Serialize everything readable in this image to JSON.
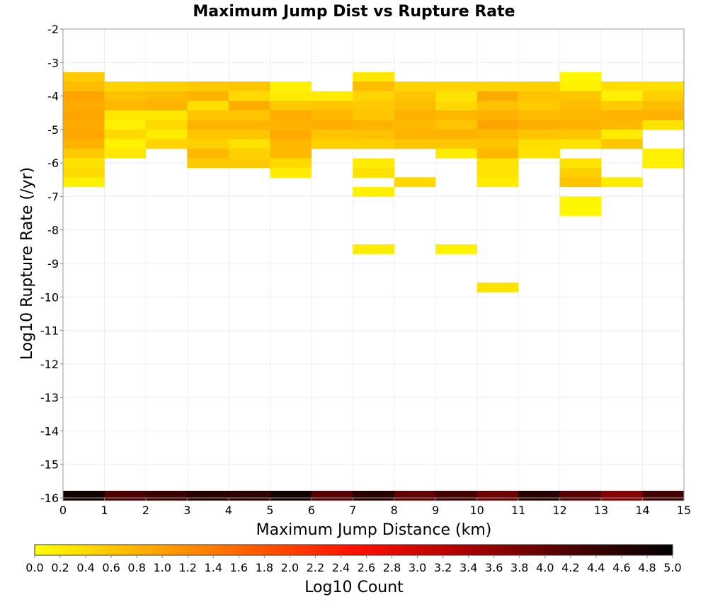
{
  "chart_data": {
    "type": "heatmap",
    "title": "Maximum Jump Dist vs Rupture Rate",
    "xlabel": "Maximum Jump Distance (km)",
    "ylabel": "Log10 Rupture Rate (/yr)",
    "xlim": [
      0,
      15
    ],
    "ylim": [
      -16,
      -2
    ],
    "x_ticks": [
      "0",
      "1",
      "2",
      "3",
      "4",
      "5",
      "6",
      "7",
      "8",
      "9",
      "10",
      "11",
      "12",
      "13",
      "14",
      "15"
    ],
    "y_ticks": [
      "-2",
      "-3",
      "-4",
      "-5",
      "-6",
      "-7",
      "-8",
      "-9",
      "-10",
      "-11",
      "-12",
      "-13",
      "-14",
      "-15",
      "-16"
    ],
    "grid": true,
    "x_bin_width": 1,
    "y_bin_height": 0.2857,
    "cells": [
      {
        "x": 0,
        "y": -3.43,
        "v": 0.55
      },
      {
        "x": 0,
        "y": -3.71,
        "v": 0.7
      },
      {
        "x": 0,
        "y": -4.0,
        "v": 0.95
      },
      {
        "x": 0,
        "y": -4.29,
        "v": 0.9
      },
      {
        "x": 0,
        "y": -4.57,
        "v": 0.95
      },
      {
        "x": 0,
        "y": -4.86,
        "v": 0.9
      },
      {
        "x": 0,
        "y": -5.14,
        "v": 0.95
      },
      {
        "x": 0,
        "y": -5.43,
        "v": 0.8
      },
      {
        "x": 0,
        "y": -5.71,
        "v": 0.55
      },
      {
        "x": 0,
        "y": -6.0,
        "v": 0.3
      },
      {
        "x": 0,
        "y": -6.29,
        "v": 0.4
      },
      {
        "x": 0,
        "y": -6.57,
        "v": 0.15
      },
      {
        "x": 1,
        "y": -3.71,
        "v": 0.45
      },
      {
        "x": 1,
        "y": -4.0,
        "v": 0.65
      },
      {
        "x": 1,
        "y": -4.29,
        "v": 0.75
      },
      {
        "x": 1,
        "y": -4.57,
        "v": 0.25
      },
      {
        "x": 1,
        "y": -4.86,
        "v": 0.15
      },
      {
        "x": 1,
        "y": -5.14,
        "v": 0.4
      },
      {
        "x": 1,
        "y": -5.43,
        "v": 0.15
      },
      {
        "x": 1,
        "y": -5.71,
        "v": 0.25
      },
      {
        "x": 2,
        "y": -3.71,
        "v": 0.5
      },
      {
        "x": 2,
        "y": -4.0,
        "v": 0.7
      },
      {
        "x": 2,
        "y": -4.29,
        "v": 0.8
      },
      {
        "x": 2,
        "y": -4.57,
        "v": 0.25
      },
      {
        "x": 2,
        "y": -4.86,
        "v": 0.4
      },
      {
        "x": 2,
        "y": -5.14,
        "v": 0.2
      },
      {
        "x": 2,
        "y": -5.43,
        "v": 0.45
      },
      {
        "x": 3,
        "y": -3.71,
        "v": 0.55
      },
      {
        "x": 3,
        "y": -4.0,
        "v": 0.8
      },
      {
        "x": 3,
        "y": -4.29,
        "v": 0.35
      },
      {
        "x": 3,
        "y": -4.57,
        "v": 0.6
      },
      {
        "x": 3,
        "y": -4.86,
        "v": 0.8
      },
      {
        "x": 3,
        "y": -5.14,
        "v": 0.6
      },
      {
        "x": 3,
        "y": -5.43,
        "v": 0.5
      },
      {
        "x": 3,
        "y": -5.71,
        "v": 0.75
      },
      {
        "x": 3,
        "y": -6.0,
        "v": 0.55
      },
      {
        "x": 4,
        "y": -3.71,
        "v": 0.6
      },
      {
        "x": 4,
        "y": -4.0,
        "v": 0.4
      },
      {
        "x": 4,
        "y": -4.29,
        "v": 0.85
      },
      {
        "x": 4,
        "y": -4.57,
        "v": 0.6
      },
      {
        "x": 4,
        "y": -4.86,
        "v": 0.8
      },
      {
        "x": 4,
        "y": -5.14,
        "v": 0.6
      },
      {
        "x": 4,
        "y": -5.43,
        "v": 0.3
      },
      {
        "x": 4,
        "y": -5.71,
        "v": 0.5
      },
      {
        "x": 4,
        "y": -6.0,
        "v": 0.55
      },
      {
        "x": 5,
        "y": -3.71,
        "v": 0.15
      },
      {
        "x": 5,
        "y": -4.0,
        "v": 0.2
      },
      {
        "x": 5,
        "y": -4.29,
        "v": 0.55
      },
      {
        "x": 5,
        "y": -4.57,
        "v": 0.85
      },
      {
        "x": 5,
        "y": -4.86,
        "v": 0.8
      },
      {
        "x": 5,
        "y": -5.14,
        "v": 0.9
      },
      {
        "x": 5,
        "y": -5.43,
        "v": 0.75
      },
      {
        "x": 5,
        "y": -5.71,
        "v": 0.75
      },
      {
        "x": 5,
        "y": -6.0,
        "v": 0.4
      },
      {
        "x": 5,
        "y": -6.29,
        "v": 0.2
      },
      {
        "x": 6,
        "y": -4.0,
        "v": 0.2
      },
      {
        "x": 6,
        "y": -4.29,
        "v": 0.6
      },
      {
        "x": 6,
        "y": -4.57,
        "v": 0.75
      },
      {
        "x": 6,
        "y": -4.86,
        "v": 0.85
      },
      {
        "x": 6,
        "y": -5.14,
        "v": 0.6
      },
      {
        "x": 6,
        "y": -5.43,
        "v": 0.5
      },
      {
        "x": 7,
        "y": -3.43,
        "v": 0.25
      },
      {
        "x": 7,
        "y": -3.71,
        "v": 0.7
      },
      {
        "x": 7,
        "y": -4.0,
        "v": 0.45
      },
      {
        "x": 7,
        "y": -4.29,
        "v": 0.55
      },
      {
        "x": 7,
        "y": -4.57,
        "v": 0.6
      },
      {
        "x": 7,
        "y": -4.86,
        "v": 0.8
      },
      {
        "x": 7,
        "y": -5.14,
        "v": 0.65
      },
      {
        "x": 7,
        "y": -5.43,
        "v": 0.5
      },
      {
        "x": 7,
        "y": -6.0,
        "v": 0.2
      },
      {
        "x": 7,
        "y": -6.29,
        "v": 0.3
      },
      {
        "x": 7,
        "y": -6.86,
        "v": 0.15
      },
      {
        "x": 7,
        "y": -8.57,
        "v": 0.2
      },
      {
        "x": 8,
        "y": -3.71,
        "v": 0.45
      },
      {
        "x": 8,
        "y": -4.0,
        "v": 0.6
      },
      {
        "x": 8,
        "y": -4.29,
        "v": 0.7
      },
      {
        "x": 8,
        "y": -4.57,
        "v": 0.8
      },
      {
        "x": 8,
        "y": -4.86,
        "v": 0.75
      },
      {
        "x": 8,
        "y": -5.14,
        "v": 0.8
      },
      {
        "x": 8,
        "y": -5.43,
        "v": 0.6
      },
      {
        "x": 8,
        "y": -6.57,
        "v": 0.4
      },
      {
        "x": 9,
        "y": -3.71,
        "v": 0.45
      },
      {
        "x": 9,
        "y": -4.0,
        "v": 0.3
      },
      {
        "x": 9,
        "y": -4.29,
        "v": 0.4
      },
      {
        "x": 9,
        "y": -4.57,
        "v": 0.75
      },
      {
        "x": 9,
        "y": -4.86,
        "v": 0.6
      },
      {
        "x": 9,
        "y": -5.14,
        "v": 0.8
      },
      {
        "x": 9,
        "y": -5.43,
        "v": 0.6
      },
      {
        "x": 9,
        "y": -5.71,
        "v": 0.2
      },
      {
        "x": 9,
        "y": -8.57,
        "v": 0.15
      },
      {
        "x": 10,
        "y": -3.71,
        "v": 0.45
      },
      {
        "x": 10,
        "y": -4.0,
        "v": 0.9
      },
      {
        "x": 10,
        "y": -4.29,
        "v": 0.65
      },
      {
        "x": 10,
        "y": -4.57,
        "v": 0.8
      },
      {
        "x": 10,
        "y": -4.86,
        "v": 0.95
      },
      {
        "x": 10,
        "y": -5.14,
        "v": 0.75
      },
      {
        "x": 10,
        "y": -5.43,
        "v": 0.6
      },
      {
        "x": 10,
        "y": -5.71,
        "v": 0.75
      },
      {
        "x": 10,
        "y": -6.0,
        "v": 0.3
      },
      {
        "x": 10,
        "y": -6.29,
        "v": 0.3
      },
      {
        "x": 10,
        "y": -6.57,
        "v": 0.2
      },
      {
        "x": 10,
        "y": -9.71,
        "v": 0.3
      },
      {
        "x": 11,
        "y": -3.71,
        "v": 0.5
      },
      {
        "x": 11,
        "y": -4.0,
        "v": 0.6
      },
      {
        "x": 11,
        "y": -4.29,
        "v": 0.55
      },
      {
        "x": 11,
        "y": -4.57,
        "v": 0.7
      },
      {
        "x": 11,
        "y": -4.86,
        "v": 0.85
      },
      {
        "x": 11,
        "y": -5.14,
        "v": 0.6
      },
      {
        "x": 11,
        "y": -5.43,
        "v": 0.35
      },
      {
        "x": 11,
        "y": -5.71,
        "v": 0.3
      },
      {
        "x": 12,
        "y": -3.43,
        "v": 0.1
      },
      {
        "x": 12,
        "y": -3.71,
        "v": 0.15
      },
      {
        "x": 12,
        "y": -4.0,
        "v": 0.6
      },
      {
        "x": 12,
        "y": -4.29,
        "v": 0.7
      },
      {
        "x": 12,
        "y": -4.57,
        "v": 0.75
      },
      {
        "x": 12,
        "y": -4.86,
        "v": 0.8
      },
      {
        "x": 12,
        "y": -5.14,
        "v": 0.6
      },
      {
        "x": 12,
        "y": -5.43,
        "v": 0.3
      },
      {
        "x": 12,
        "y": -6.0,
        "v": 0.3
      },
      {
        "x": 12,
        "y": -6.29,
        "v": 0.5
      },
      {
        "x": 12,
        "y": -6.57,
        "v": 0.6
      },
      {
        "x": 12,
        "y": -7.14,
        "v": 0.1
      },
      {
        "x": 12,
        "y": -7.43,
        "v": 0.1
      },
      {
        "x": 13,
        "y": -3.71,
        "v": 0.35
      },
      {
        "x": 13,
        "y": -4.0,
        "v": 0.15
      },
      {
        "x": 13,
        "y": -4.29,
        "v": 0.55
      },
      {
        "x": 13,
        "y": -4.57,
        "v": 0.8
      },
      {
        "x": 13,
        "y": -4.86,
        "v": 0.75
      },
      {
        "x": 13,
        "y": -5.14,
        "v": 0.2
      },
      {
        "x": 13,
        "y": -5.43,
        "v": 0.6
      },
      {
        "x": 13,
        "y": -6.57,
        "v": 0.2
      },
      {
        "x": 14,
        "y": -3.71,
        "v": 0.35
      },
      {
        "x": 14,
        "y": -4.0,
        "v": 0.5
      },
      {
        "x": 14,
        "y": -4.29,
        "v": 0.7
      },
      {
        "x": 14,
        "y": -4.57,
        "v": 0.8
      },
      {
        "x": 14,
        "y": -4.86,
        "v": 0.3
      },
      {
        "x": 14,
        "y": -5.71,
        "v": 0.15
      },
      {
        "x": 14,
        "y": -6.0,
        "v": 0.15
      },
      {
        "x": 0,
        "y": -15.93,
        "v": 4.8
      },
      {
        "x": 1,
        "y": -15.93,
        "v": 4.2
      },
      {
        "x": 2,
        "y": -15.93,
        "v": 4.4
      },
      {
        "x": 3,
        "y": -15.93,
        "v": 4.6
      },
      {
        "x": 4,
        "y": -15.93,
        "v": 4.5
      },
      {
        "x": 5,
        "y": -15.93,
        "v": 4.8
      },
      {
        "x": 6,
        "y": -15.93,
        "v": 4.1
      },
      {
        "x": 7,
        "y": -15.93,
        "v": 4.6
      },
      {
        "x": 8,
        "y": -15.93,
        "v": 4.0
      },
      {
        "x": 9,
        "y": -15.93,
        "v": 4.3
      },
      {
        "x": 10,
        "y": -15.93,
        "v": 3.9
      },
      {
        "x": 11,
        "y": -15.93,
        "v": 4.6
      },
      {
        "x": 12,
        "y": -15.93,
        "v": 4.1
      },
      {
        "x": 13,
        "y": -15.93,
        "v": 3.7
      },
      {
        "x": 14,
        "y": -15.93,
        "v": 4.3
      }
    ],
    "colorbar": {
      "label": "Log10 Count",
      "range": [
        0.0,
        5.0
      ],
      "ticks": [
        "0.0",
        "0.2",
        "0.4",
        "0.6",
        "0.8",
        "1.0",
        "1.2",
        "1.4",
        "1.6",
        "1.8",
        "2.0",
        "2.2",
        "2.4",
        "2.6",
        "2.8",
        "3.0",
        "3.2",
        "3.4",
        "3.6",
        "3.8",
        "4.0",
        "4.2",
        "4.4",
        "4.6",
        "4.8",
        "5.0"
      ],
      "colors": [
        "#ffff00",
        "#ffb000",
        "#ff6000",
        "#ff1000",
        "#b00000",
        "#500000",
        "#000000"
      ]
    }
  }
}
